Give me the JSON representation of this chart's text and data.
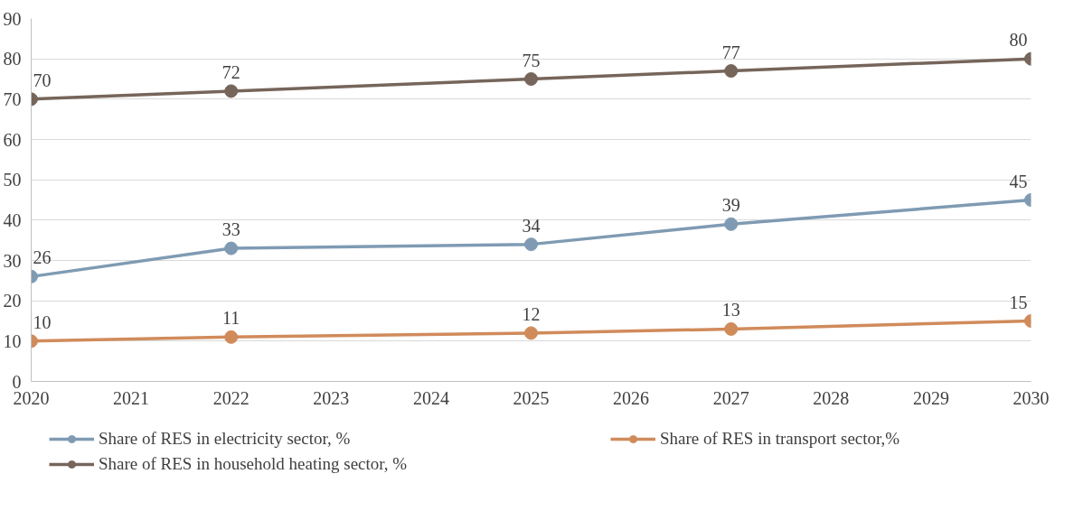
{
  "chart_data": {
    "type": "line",
    "x": [
      2020,
      2022,
      2025,
      2027,
      2030
    ],
    "series": [
      {
        "name": "Share of RES in electricity sector, %",
        "color": "#7f9bb3",
        "values": [
          26,
          33,
          34,
          39,
          45
        ]
      },
      {
        "name": "Share of RES in transport sector,%",
        "color": "#d08b5b",
        "values": [
          10,
          11,
          12,
          13,
          15
        ]
      },
      {
        "name": "Share of RES in household heating sector, %",
        "color": "#76655a",
        "values": [
          70,
          72,
          75,
          77,
          80
        ]
      }
    ],
    "xlim": [
      2020,
      2030
    ],
    "xticks": [
      2020,
      2021,
      2022,
      2023,
      2024,
      2025,
      2026,
      2027,
      2028,
      2029,
      2030
    ],
    "ylim": [
      0,
      90
    ],
    "yticks": [
      0,
      10,
      20,
      30,
      40,
      50,
      60,
      70,
      80,
      90
    ],
    "grid": "y",
    "legend": "bottom",
    "marker": "circle",
    "data_labels": true
  }
}
